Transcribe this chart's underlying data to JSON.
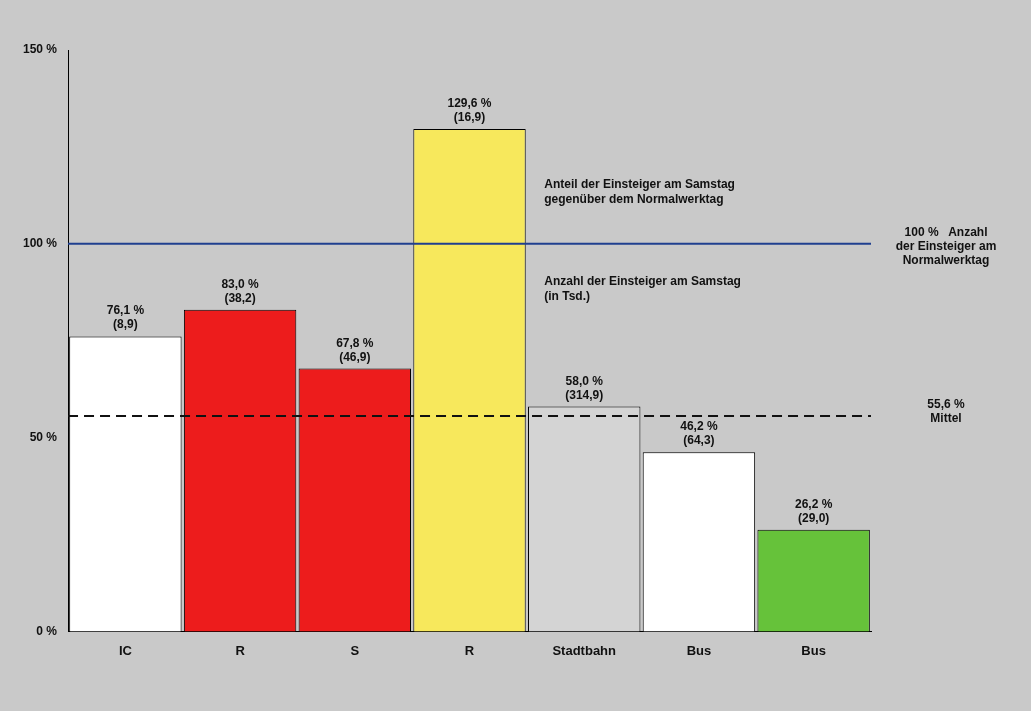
{
  "chart_data": {
    "type": "bar",
    "categories": [
      "IC",
      "R",
      "S",
      "R",
      "Stadtbahn",
      "Bus",
      "Bus"
    ],
    "values": [
      76.1,
      83.0,
      67.8,
      129.6,
      58.0,
      46.2,
      26.2
    ],
    "colors": [
      "#ffffff",
      "#ed1c1c",
      "#ed1c1c",
      "#f7e85c",
      "#d4d4d4",
      "#ffffff",
      "#66c23a"
    ],
    "value_labels": [
      "76,1 %\n(8,9)",
      "83,0 %\n(38,2)",
      "67,8 %\n(46,9)",
      "129,6 %\n(16,9)",
      "58,0 %\n(314,9)",
      "46,2 %\n(64,3)",
      "26,2 %\n(29,0)"
    ],
    "ylim": [
      0,
      150
    ],
    "yticks": [
      {
        "value": 0,
        "label": "0 %"
      },
      {
        "value": 50,
        "label": "50 %"
      },
      {
        "value": 100,
        "label": "100 %"
      },
      {
        "value": 150,
        "label": "150 %"
      }
    ],
    "grid": false,
    "ref_lines": [
      {
        "axis": "y",
        "value": 100,
        "label": "100 %   Anzahl\nder Einsteiger am\nNormalwerktag",
        "color": "#1f3f8f",
        "line_style": "solid"
      },
      {
        "axis": "y",
        "value": 55.6,
        "label": "55,6 %\nMittel",
        "color": "#111111",
        "line_style": "dashed"
      }
    ],
    "annotations": [
      "Anteil der Einsteiger am Samstag\ngegenüber dem Normalwerktag",
      "Anzahl der Einsteiger am Samstag\n(in Tsd.)"
    ]
  }
}
